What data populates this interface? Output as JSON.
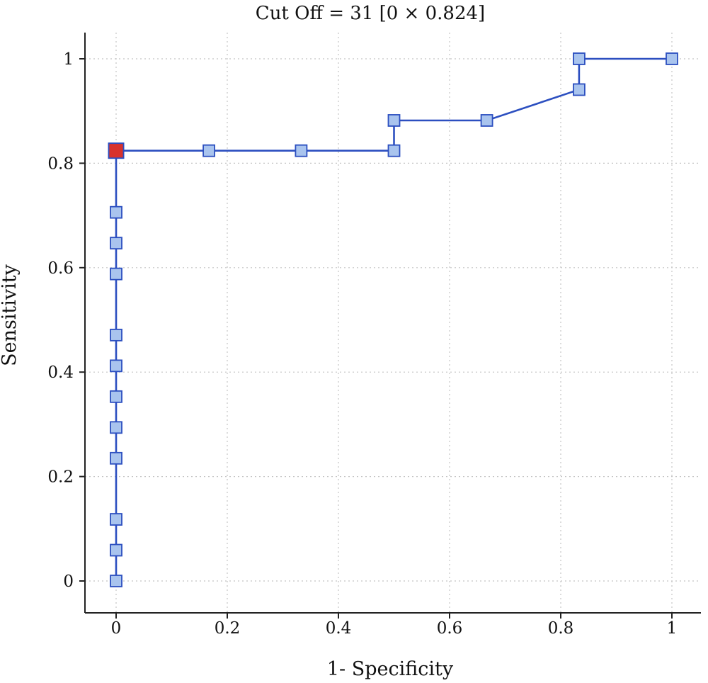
{
  "chart_data": {
    "type": "line",
    "title": "Cut Off = 31 [0 × 0.824]",
    "xlabel": "1- Specificity",
    "ylabel": "Sensitivity",
    "xlim": [
      0,
      1
    ],
    "ylim": [
      0,
      1
    ],
    "xticks": [
      "0",
      "0.2",
      "0.4",
      "0.6",
      "0.8",
      "1"
    ],
    "yticks": [
      "0",
      "0.2",
      "0.4",
      "0.6",
      "0.8",
      "1"
    ],
    "grid": true,
    "series": [
      {
        "x": [
          0,
          0,
          0,
          0,
          0,
          0,
          0,
          0,
          0,
          0,
          0,
          0,
          0,
          0.167,
          0.333,
          0.5,
          0.5,
          0.667,
          0.833,
          0.833,
          1
        ],
        "y": [
          0,
          0.059,
          0.118,
          0.235,
          0.294,
          0.353,
          0.412,
          0.471,
          0.588,
          0.647,
          0.706,
          0.824,
          0.824,
          0.824,
          0.824,
          0.824,
          0.882,
          0.882,
          0.941,
          1,
          1
        ]
      }
    ],
    "highlight_point": {
      "x": 0,
      "y": 0.824
    },
    "colors": {
      "line": "#2c4fc0",
      "marker_fill": "#a9c4ee",
      "highlight_fill": "#d8322c"
    }
  }
}
